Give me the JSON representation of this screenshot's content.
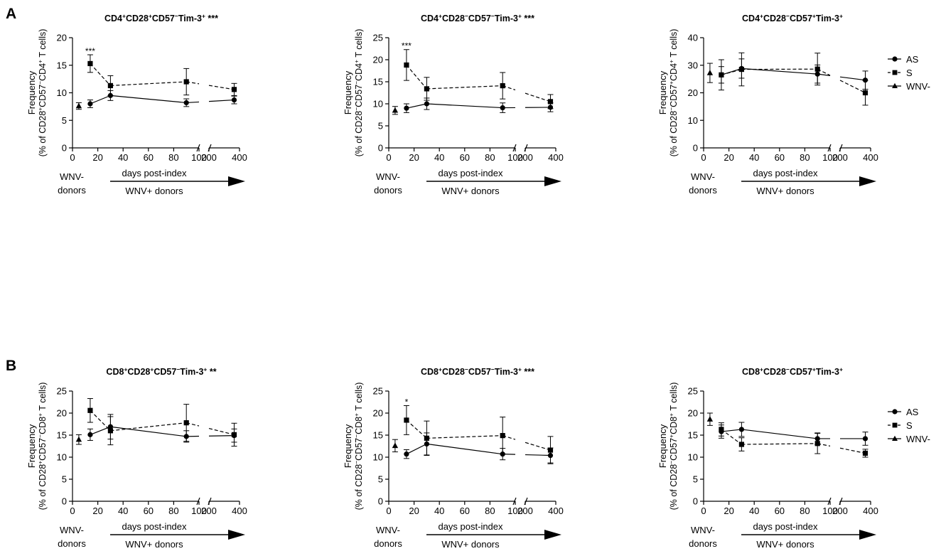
{
  "figure": {
    "panel_labels": [
      "A",
      "B"
    ],
    "x_axis": {
      "label": "days post-index",
      "tick_labels_main": [
        "0",
        "20",
        "40",
        "60",
        "80",
        "100"
      ],
      "tick_labels_break": [
        "200",
        "400"
      ],
      "group_label_negative_line1": "WNV-",
      "group_label_negative_line2": "donors",
      "group_label_positive": "WNV+ donors"
    },
    "legend": [
      "AS",
      "S",
      "WNV-"
    ]
  },
  "chart_data": [
    {
      "type": "line",
      "row": "A",
      "col": 0,
      "title": "CD4+CD28+CD57-Tim-3+",
      "title_stars": "***",
      "ylabel_line1": "Frequency",
      "ylabel_line2": "(% of CD28+CD57-CD4+ T cells)",
      "ylim": [
        0,
        20
      ],
      "yticks": [
        0,
        5,
        10,
        15,
        20
      ],
      "x_main": [
        0,
        100
      ],
      "x_break": [
        200,
        400
      ],
      "series": [
        {
          "name": "AS",
          "marker": "circle",
          "dash": "solid",
          "points": [
            {
              "x": 14,
              "y": 8.0,
              "err": 0.7
            },
            {
              "x": 30,
              "y": 9.5,
              "err": 0.9
            },
            {
              "x": 90,
              "y": 8.2,
              "err": 0.7
            },
            {
              "x": 365,
              "y": 8.7,
              "err": 0.7
            }
          ]
        },
        {
          "name": "S",
          "marker": "square",
          "dash": "dashed",
          "points": [
            {
              "x": 14,
              "y": 15.3,
              "err": 1.6
            },
            {
              "x": 30,
              "y": 11.3,
              "err": 1.8
            },
            {
              "x": 90,
              "y": 12.0,
              "err": 2.4
            },
            {
              "x": 365,
              "y": 10.6,
              "err": 1.1
            }
          ]
        },
        {
          "name": "WNV-",
          "marker": "triangle",
          "dash": "none",
          "points": [
            {
              "x": 5,
              "y": 7.6,
              "err": 0.6
            }
          ]
        }
      ],
      "annotations": [
        {
          "x": 14,
          "y": 17.4,
          "text": "***"
        }
      ]
    },
    {
      "type": "line",
      "row": "A",
      "col": 1,
      "title": "CD4+CD28-CD57-Tim-3+",
      "title_stars": "***",
      "ylabel_line1": "Frequency",
      "ylabel_line2": "(% of CD28-CD57-CD4+ T cells)",
      "ylim": [
        0,
        25
      ],
      "yticks": [
        0,
        5,
        10,
        15,
        20,
        25
      ],
      "x_main": [
        0,
        100
      ],
      "x_break": [
        200,
        400
      ],
      "series": [
        {
          "name": "AS",
          "marker": "circle",
          "dash": "solid",
          "points": [
            {
              "x": 14,
              "y": 9.0,
              "err": 1.0
            },
            {
              "x": 30,
              "y": 10.0,
              "err": 1.3
            },
            {
              "x": 90,
              "y": 9.1,
              "err": 1.1
            },
            {
              "x": 365,
              "y": 9.2,
              "err": 1.0
            }
          ]
        },
        {
          "name": "S",
          "marker": "square",
          "dash": "dashed",
          "points": [
            {
              "x": 14,
              "y": 18.8,
              "err": 3.5
            },
            {
              "x": 30,
              "y": 13.4,
              "err": 2.6
            },
            {
              "x": 90,
              "y": 14.1,
              "err": 3.0
            },
            {
              "x": 365,
              "y": 10.5,
              "err": 1.6
            }
          ]
        },
        {
          "name": "WNV-",
          "marker": "triangle",
          "dash": "none",
          "points": [
            {
              "x": 5,
              "y": 8.5,
              "err": 0.9
            }
          ]
        }
      ],
      "annotations": [
        {
          "x": 14,
          "y": 23.0,
          "text": "***"
        }
      ]
    },
    {
      "type": "line",
      "row": "A",
      "col": 2,
      "title": "CD4+CD28-CD57+Tim-3+",
      "title_stars": "",
      "ylabel_line1": "Frequency",
      "ylabel_line2": "(% of CD28-CD57+CD4+ T cells)",
      "ylim": [
        0,
        40
      ],
      "yticks": [
        0,
        10,
        20,
        30,
        40
      ],
      "x_main": [
        0,
        100
      ],
      "x_break": [
        200,
        400
      ],
      "series": [
        {
          "name": "AS",
          "marker": "circle",
          "dash": "solid",
          "points": [
            {
              "x": 14,
              "y": 26.5,
              "err": 3.0
            },
            {
              "x": 30,
              "y": 28.8,
              "err": 3.5
            },
            {
              "x": 90,
              "y": 26.8,
              "err": 3.3
            },
            {
              "x": 365,
              "y": 24.6,
              "err": 3.3
            }
          ]
        },
        {
          "name": "S",
          "marker": "square",
          "dash": "dashed",
          "points": [
            {
              "x": 14,
              "y": 26.5,
              "err": 5.5
            },
            {
              "x": 30,
              "y": 28.5,
              "err": 6.0
            },
            {
              "x": 90,
              "y": 28.6,
              "err": 5.8
            },
            {
              "x": 365,
              "y": 20.0,
              "err": 4.5
            }
          ]
        },
        {
          "name": "WNV-",
          "marker": "triangle",
          "dash": "none",
          "points": [
            {
              "x": 5,
              "y": 27.2,
              "err": 3.5
            }
          ]
        }
      ],
      "annotations": []
    },
    {
      "type": "line",
      "row": "B",
      "col": 0,
      "title": "CD8+CD28+CD57-Tim-3+",
      "title_stars": "**",
      "ylabel_line1": "Frequency",
      "ylabel_line2": "(% of CD28+CD57-CD8+ T cells)",
      "ylim": [
        0,
        25
      ],
      "yticks": [
        0,
        5,
        10,
        15,
        20,
        25
      ],
      "x_main": [
        0,
        100
      ],
      "x_break": [
        200,
        400
      ],
      "series": [
        {
          "name": "AS",
          "marker": "circle",
          "dash": "solid",
          "points": [
            {
              "x": 14,
              "y": 15.1,
              "err": 1.3
            },
            {
              "x": 30,
              "y": 16.9,
              "err": 2.8
            },
            {
              "x": 90,
              "y": 14.7,
              "err": 1.3
            },
            {
              "x": 365,
              "y": 14.9,
              "err": 1.5
            }
          ]
        },
        {
          "name": "S",
          "marker": "square",
          "dash": "dashed",
          "points": [
            {
              "x": 14,
              "y": 20.6,
              "err": 2.7
            },
            {
              "x": 30,
              "y": 16.0,
              "err": 3.2
            },
            {
              "x": 90,
              "y": 17.8,
              "err": 4.2
            },
            {
              "x": 365,
              "y": 15.1,
              "err": 2.6
            }
          ]
        },
        {
          "name": "WNV-",
          "marker": "triangle",
          "dash": "none",
          "points": [
            {
              "x": 5,
              "y": 14.0,
              "err": 1.1
            }
          ]
        }
      ],
      "annotations": []
    },
    {
      "type": "line",
      "row": "B",
      "col": 1,
      "title": "CD8+CD28-CD57-Tim-3+",
      "title_stars": "***",
      "ylabel_line1": "Frequency",
      "ylabel_line2": "(% of CD28-CD57-CD8+ T cells)",
      "ylim": [
        0,
        25
      ],
      "yticks": [
        0,
        5,
        10,
        15,
        20,
        25
      ],
      "x_main": [
        0,
        100
      ],
      "x_break": [
        200,
        400
      ],
      "series": [
        {
          "name": "AS",
          "marker": "circle",
          "dash": "solid",
          "points": [
            {
              "x": 14,
              "y": 10.7,
              "err": 1.0
            },
            {
              "x": 30,
              "y": 13.0,
              "err": 2.5
            },
            {
              "x": 90,
              "y": 10.7,
              "err": 1.3
            },
            {
              "x": 365,
              "y": 10.4,
              "err": 1.7
            }
          ]
        },
        {
          "name": "S",
          "marker": "square",
          "dash": "dashed",
          "points": [
            {
              "x": 14,
              "y": 18.4,
              "err": 3.3
            },
            {
              "x": 30,
              "y": 14.3,
              "err": 3.9
            },
            {
              "x": 90,
              "y": 14.9,
              "err": 4.2
            },
            {
              "x": 365,
              "y": 11.6,
              "err": 3.1
            }
          ]
        },
        {
          "name": "WNV-",
          "marker": "triangle",
          "dash": "none",
          "points": [
            {
              "x": 5,
              "y": 12.6,
              "err": 1.4
            }
          ]
        }
      ],
      "annotations": [
        {
          "x": 14,
          "y": 22.3,
          "text": "*"
        }
      ]
    },
    {
      "type": "line",
      "row": "B",
      "col": 2,
      "title": "CD8+CD28-CD57+Tim-3+",
      "title_stars": "",
      "ylabel_line1": "Frequency",
      "ylabel_line2": "(% of CD28-CD57+CD8+ T cells)",
      "ylim": [
        0,
        25
      ],
      "yticks": [
        0,
        5,
        10,
        15,
        20,
        25
      ],
      "x_main": [
        0,
        100
      ],
      "x_break": [
        200,
        400
      ],
      "series": [
        {
          "name": "AS",
          "marker": "circle",
          "dash": "solid",
          "points": [
            {
              "x": 14,
              "y": 15.8,
              "err": 1.5
            },
            {
              "x": 30,
              "y": 16.3,
              "err": 1.6
            },
            {
              "x": 90,
              "y": 14.2,
              "err": 1.3
            },
            {
              "x": 365,
              "y": 14.2,
              "err": 1.5
            }
          ]
        },
        {
          "name": "S",
          "marker": "square",
          "dash": "dashed",
          "points": [
            {
              "x": 14,
              "y": 16.3,
              "err": 1.5
            },
            {
              "x": 30,
              "y": 12.9,
              "err": 1.5
            },
            {
              "x": 90,
              "y": 13.1,
              "err": 2.3
            },
            {
              "x": 365,
              "y": 10.9,
              "err": 0.9
            }
          ]
        },
        {
          "name": "WNV-",
          "marker": "triangle",
          "dash": "none",
          "points": [
            {
              "x": 5,
              "y": 18.6,
              "err": 1.4
            }
          ]
        }
      ],
      "annotations": []
    }
  ]
}
